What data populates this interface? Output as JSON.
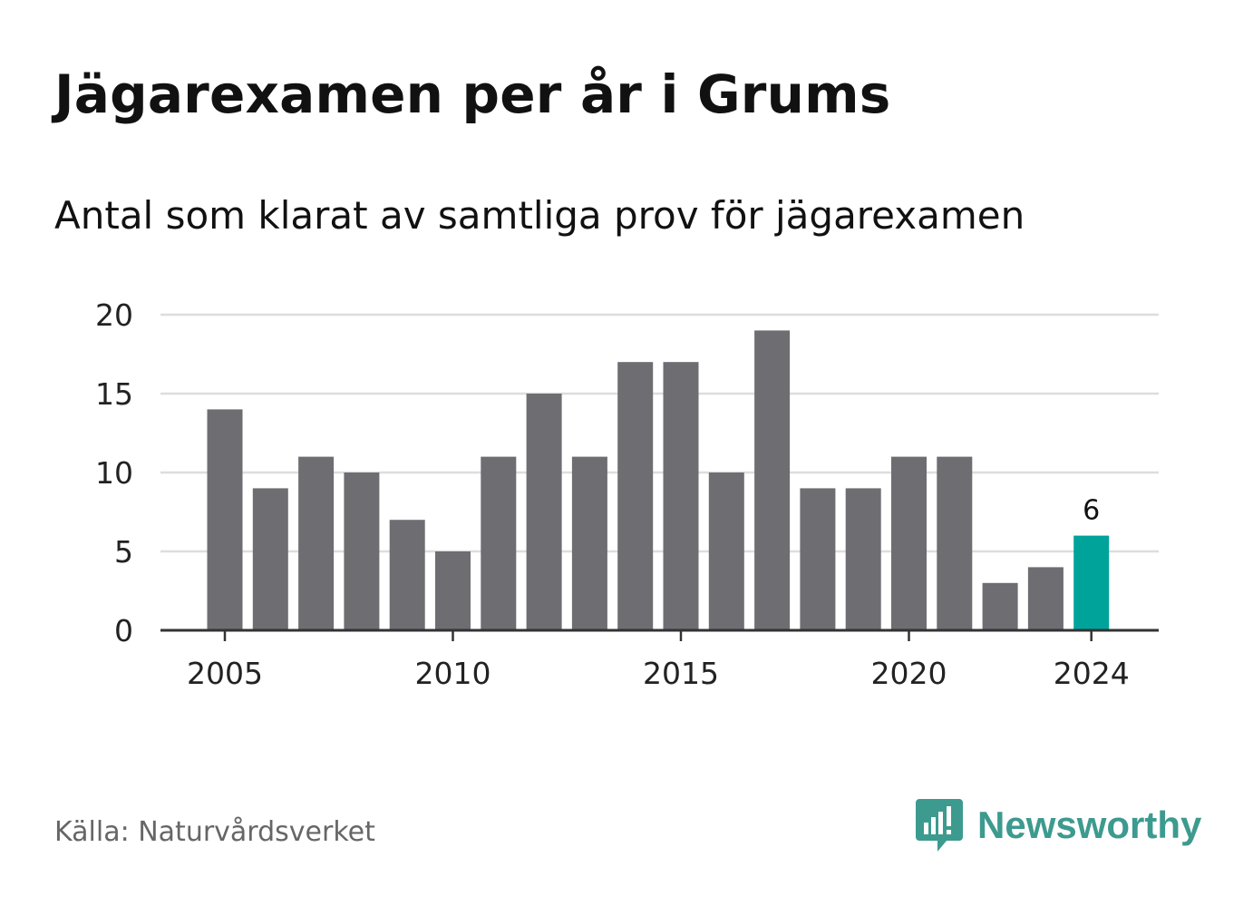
{
  "header": {
    "title": "Jägarexamen per år i Grums",
    "subtitle": "Antal som klarat av samtliga prov för jägarexamen"
  },
  "chart_data": {
    "type": "bar",
    "title": "Jägarexamen per år i Grums",
    "subtitle": "Antal som klarat av samtliga prov för jägarexamen",
    "categories": [
      2005,
      2006,
      2007,
      2008,
      2009,
      2010,
      2011,
      2012,
      2013,
      2014,
      2015,
      2016,
      2017,
      2018,
      2019,
      2020,
      2021,
      2022,
      2023,
      2024
    ],
    "values": [
      14,
      9,
      11,
      10,
      7,
      5,
      11,
      15,
      11,
      17,
      17,
      10,
      19,
      9,
      9,
      11,
      11,
      3,
      4,
      6
    ],
    "xticks": [
      2005,
      2010,
      2015,
      2020,
      2024
    ],
    "yticks": [
      0,
      5,
      10,
      15,
      20
    ],
    "ylim": [
      0,
      20
    ],
    "grid": true,
    "highlight": {
      "category": 2024,
      "label": "6"
    },
    "colors": {
      "bar": "#6e6d72",
      "highlight": "#00a39a",
      "grid": "#dddddd",
      "axis": "#333333"
    }
  },
  "footer": {
    "source": "Källa: Naturvårdsverket",
    "brand": "Newsworthy",
    "brand_color": "#3d9a8f",
    "brand_icon": "bar-chart-speech-bubble-icon"
  }
}
